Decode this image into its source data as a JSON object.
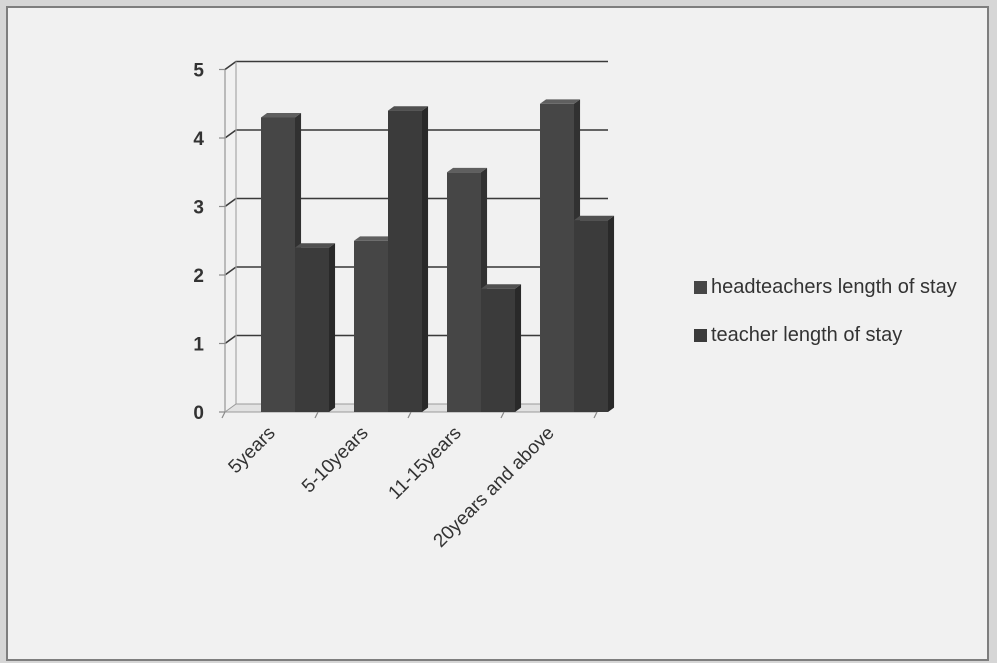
{
  "chart_data": {
    "type": "bar",
    "three_d": true,
    "categories": [
      "5years",
      "5-10years",
      "11-15years",
      "20years and above"
    ],
    "series": [
      {
        "name": "headteachers length of stay",
        "values": [
          4.3,
          2.5,
          3.5,
          4.5
        ]
      },
      {
        "name": "teacher length of stay",
        "values": [
          2.4,
          4.4,
          1.8,
          2.8
        ]
      }
    ],
    "y_ticks": [
      "0",
      "1",
      "2",
      "3",
      "4",
      "5"
    ],
    "ylim": [
      0,
      5
    ],
    "grid": true,
    "legend_position": "right",
    "colors": {
      "series_1": "#464646",
      "series_2": "#3b3b3b",
      "grid": "#3a3a3a",
      "background": "#f1f1f1"
    }
  }
}
